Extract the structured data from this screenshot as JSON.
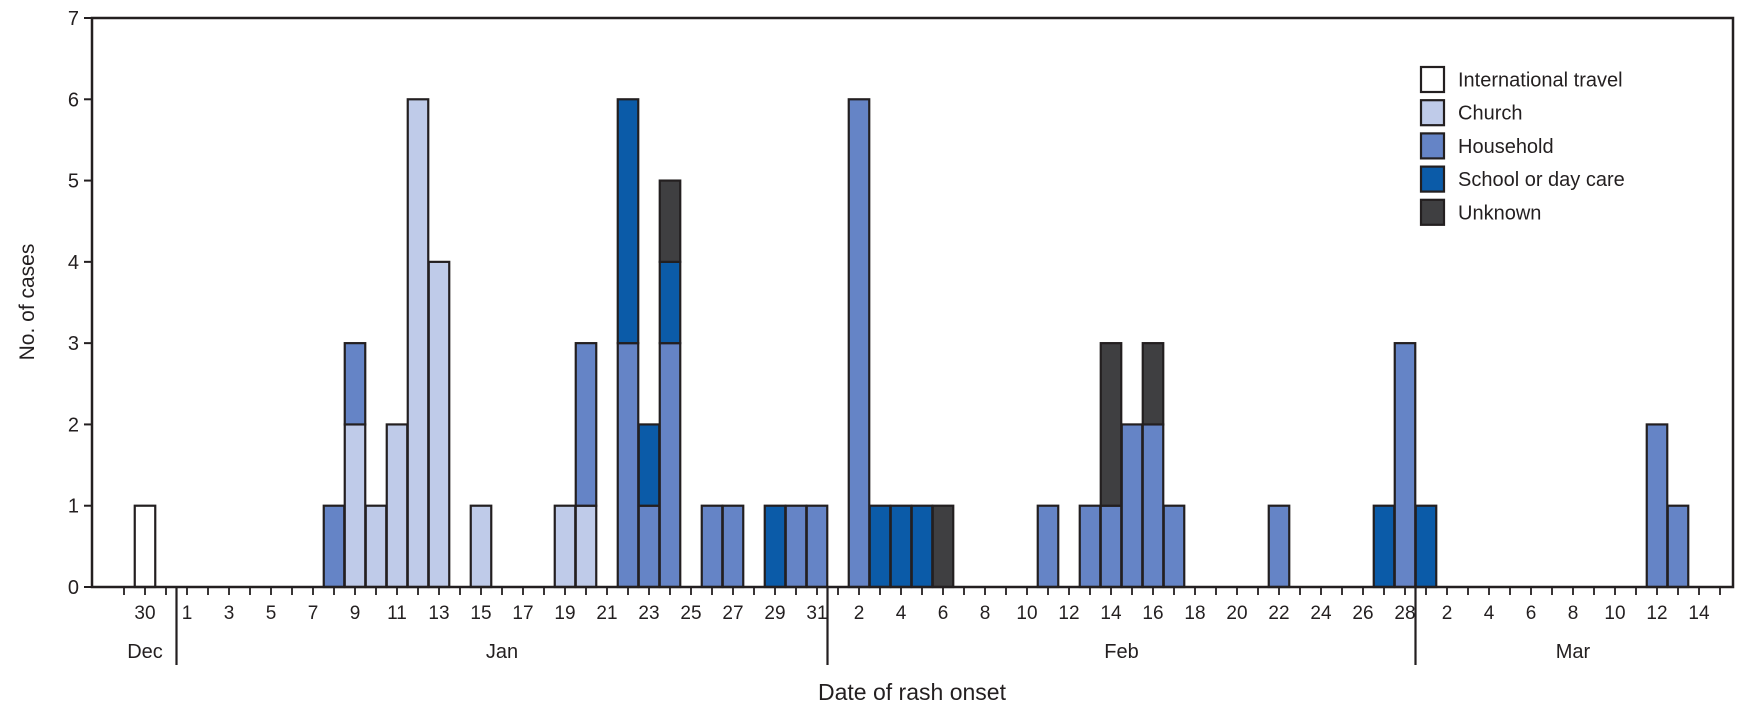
{
  "chart_data": {
    "type": "bar",
    "stacked": true,
    "title": "",
    "xlabel": "Date of rash onset",
    "ylabel": "No. of cases",
    "ylim": [
      0,
      7
    ],
    "yticks": [
      0,
      1,
      2,
      3,
      4,
      5,
      6,
      7
    ],
    "grid": false,
    "legend_position": "top-right",
    "series": [
      {
        "name": "International travel",
        "color": "#ffffff"
      },
      {
        "name": "Church",
        "color": "#bfcbe9"
      },
      {
        "name": "Household",
        "color": "#6584c6"
      },
      {
        "name": "School or day care",
        "color": "#0b5ba8"
      },
      {
        "name": "Unknown",
        "color": "#3f3f41"
      }
    ],
    "months": [
      {
        "label": "Dec",
        "start": "2014-12-29",
        "end": "2014-12-31"
      },
      {
        "label": "Jan",
        "start": "2015-01-01",
        "end": "2015-01-31"
      },
      {
        "label": "Feb",
        "start": "2015-02-01",
        "end": "2015-02-28"
      },
      {
        "label": "Mar",
        "start": "2015-03-01",
        "end": "2015-03-15"
      }
    ],
    "x_tick_labels": [
      {
        "date": "2014-12-30",
        "label": "30"
      },
      {
        "date": "2015-01-01",
        "label": "1"
      },
      {
        "date": "2015-01-03",
        "label": "3"
      },
      {
        "date": "2015-01-05",
        "label": "5"
      },
      {
        "date": "2015-01-07",
        "label": "7"
      },
      {
        "date": "2015-01-09",
        "label": "9"
      },
      {
        "date": "2015-01-11",
        "label": "11"
      },
      {
        "date": "2015-01-13",
        "label": "13"
      },
      {
        "date": "2015-01-15",
        "label": "15"
      },
      {
        "date": "2015-01-17",
        "label": "17"
      },
      {
        "date": "2015-01-19",
        "label": "19"
      },
      {
        "date": "2015-01-21",
        "label": "21"
      },
      {
        "date": "2015-01-23",
        "label": "23"
      },
      {
        "date": "2015-01-25",
        "label": "25"
      },
      {
        "date": "2015-01-27",
        "label": "27"
      },
      {
        "date": "2015-01-29",
        "label": "29"
      },
      {
        "date": "2015-01-31",
        "label": "31"
      },
      {
        "date": "2015-02-02",
        "label": "2"
      },
      {
        "date": "2015-02-04",
        "label": "4"
      },
      {
        "date": "2015-02-06",
        "label": "6"
      },
      {
        "date": "2015-02-08",
        "label": "8"
      },
      {
        "date": "2015-02-10",
        "label": "10"
      },
      {
        "date": "2015-02-12",
        "label": "12"
      },
      {
        "date": "2015-02-14",
        "label": "14"
      },
      {
        "date": "2015-02-16",
        "label": "16"
      },
      {
        "date": "2015-02-18",
        "label": "18"
      },
      {
        "date": "2015-02-20",
        "label": "20"
      },
      {
        "date": "2015-02-22",
        "label": "22"
      },
      {
        "date": "2015-02-24",
        "label": "24"
      },
      {
        "date": "2015-02-26",
        "label": "26"
      },
      {
        "date": "2015-02-28",
        "label": "28"
      },
      {
        "date": "2015-03-02",
        "label": "2"
      },
      {
        "date": "2015-03-04",
        "label": "4"
      },
      {
        "date": "2015-03-06",
        "label": "6"
      },
      {
        "date": "2015-03-08",
        "label": "8"
      },
      {
        "date": "2015-03-10",
        "label": "10"
      },
      {
        "date": "2015-03-12",
        "label": "12"
      },
      {
        "date": "2015-03-14",
        "label": "14"
      }
    ],
    "bars": [
      {
        "date": "2014-12-30",
        "stack": [
          {
            "series": "International travel",
            "value": 1
          }
        ]
      },
      {
        "date": "2015-01-08",
        "stack": [
          {
            "series": "Household",
            "value": 1
          }
        ]
      },
      {
        "date": "2015-01-09",
        "stack": [
          {
            "series": "Church",
            "value": 2
          },
          {
            "series": "Household",
            "value": 1
          }
        ]
      },
      {
        "date": "2015-01-10",
        "stack": [
          {
            "series": "Church",
            "value": 1
          }
        ]
      },
      {
        "date": "2015-01-11",
        "stack": [
          {
            "series": "Church",
            "value": 2
          }
        ]
      },
      {
        "date": "2015-01-12",
        "stack": [
          {
            "series": "Church",
            "value": 6
          }
        ]
      },
      {
        "date": "2015-01-13",
        "stack": [
          {
            "series": "Church",
            "value": 4
          }
        ]
      },
      {
        "date": "2015-01-15",
        "stack": [
          {
            "series": "Church",
            "value": 1
          }
        ]
      },
      {
        "date": "2015-01-19",
        "stack": [
          {
            "series": "Church",
            "value": 1
          }
        ]
      },
      {
        "date": "2015-01-20",
        "stack": [
          {
            "series": "Church",
            "value": 1
          },
          {
            "series": "Household",
            "value": 2
          }
        ]
      },
      {
        "date": "2015-01-22",
        "stack": [
          {
            "series": "Household",
            "value": 3
          },
          {
            "series": "School or day care",
            "value": 3
          }
        ]
      },
      {
        "date": "2015-01-23",
        "stack": [
          {
            "series": "Household",
            "value": 1
          },
          {
            "series": "School or day care",
            "value": 1
          }
        ]
      },
      {
        "date": "2015-01-24",
        "stack": [
          {
            "series": "Household",
            "value": 3
          },
          {
            "series": "School or day care",
            "value": 1
          },
          {
            "series": "Unknown",
            "value": 1
          }
        ]
      },
      {
        "date": "2015-01-26",
        "stack": [
          {
            "series": "Household",
            "value": 1
          }
        ]
      },
      {
        "date": "2015-01-27",
        "stack": [
          {
            "series": "Household",
            "value": 1
          }
        ]
      },
      {
        "date": "2015-01-29",
        "stack": [
          {
            "series": "School or day care",
            "value": 1
          }
        ]
      },
      {
        "date": "2015-01-30",
        "stack": [
          {
            "series": "Household",
            "value": 1
          }
        ]
      },
      {
        "date": "2015-01-31",
        "stack": [
          {
            "series": "Household",
            "value": 1
          }
        ]
      },
      {
        "date": "2015-02-02",
        "stack": [
          {
            "series": "Household",
            "value": 6
          }
        ]
      },
      {
        "date": "2015-02-03",
        "stack": [
          {
            "series": "School or day care",
            "value": 1
          }
        ]
      },
      {
        "date": "2015-02-04",
        "stack": [
          {
            "series": "School or day care",
            "value": 1
          }
        ]
      },
      {
        "date": "2015-02-05",
        "stack": [
          {
            "series": "School or day care",
            "value": 1
          }
        ]
      },
      {
        "date": "2015-02-06",
        "stack": [
          {
            "series": "Unknown",
            "value": 1
          }
        ]
      },
      {
        "date": "2015-02-11",
        "stack": [
          {
            "series": "Household",
            "value": 1
          }
        ]
      },
      {
        "date": "2015-02-13",
        "stack": [
          {
            "series": "Household",
            "value": 1
          }
        ]
      },
      {
        "date": "2015-02-14",
        "stack": [
          {
            "series": "Household",
            "value": 1
          },
          {
            "series": "Unknown",
            "value": 2
          }
        ]
      },
      {
        "date": "2015-02-15",
        "stack": [
          {
            "series": "Household",
            "value": 2
          }
        ]
      },
      {
        "date": "2015-02-16",
        "stack": [
          {
            "series": "Household",
            "value": 2
          },
          {
            "series": "Unknown",
            "value": 1
          }
        ]
      },
      {
        "date": "2015-02-17",
        "stack": [
          {
            "series": "Household",
            "value": 1
          }
        ]
      },
      {
        "date": "2015-02-22",
        "stack": [
          {
            "series": "Household",
            "value": 1
          }
        ]
      },
      {
        "date": "2015-02-27",
        "stack": [
          {
            "series": "School or day care",
            "value": 1
          }
        ]
      },
      {
        "date": "2015-02-28",
        "stack": [
          {
            "series": "Household",
            "value": 3
          }
        ]
      },
      {
        "date": "2015-03-01",
        "stack": [
          {
            "series": "School or day care",
            "value": 1
          }
        ]
      },
      {
        "date": "2015-03-12",
        "stack": [
          {
            "series": "Household",
            "value": 2
          }
        ]
      },
      {
        "date": "2015-03-13",
        "stack": [
          {
            "series": "Household",
            "value": 1
          }
        ]
      }
    ]
  }
}
